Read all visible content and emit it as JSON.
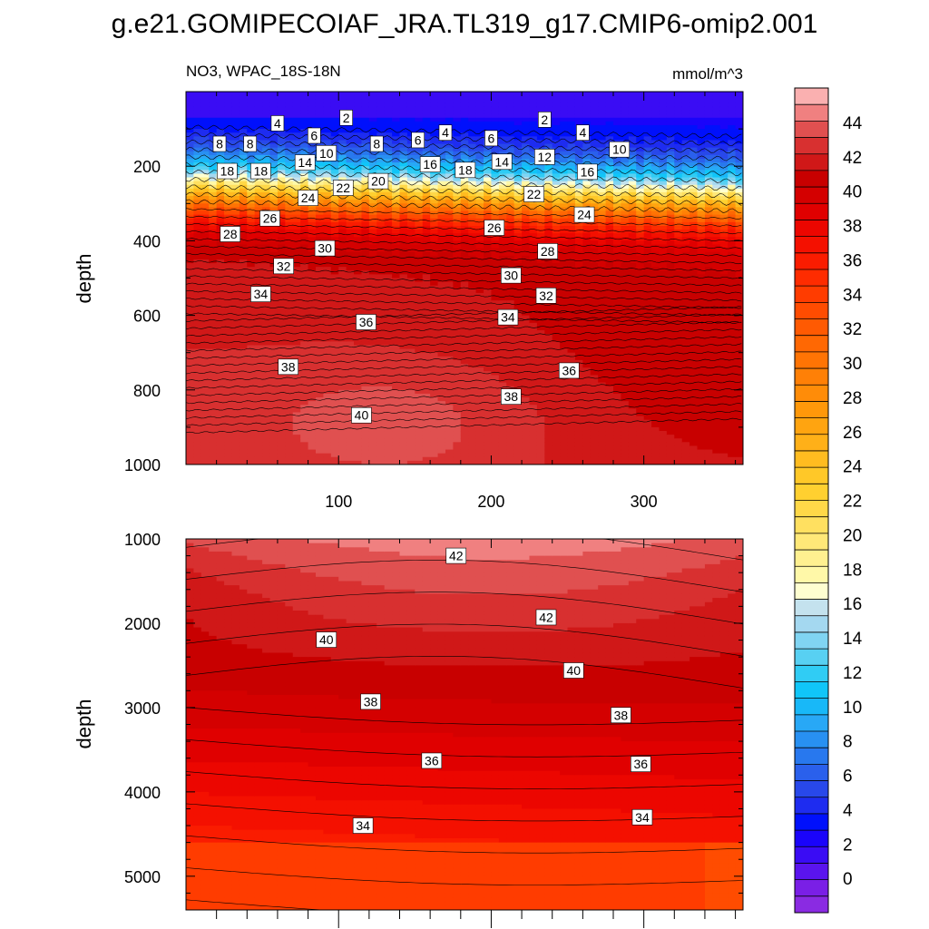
{
  "figure": {
    "title": "g.e21.GOMIPECOIAF_JRA.TL319_g17.CMIP6-omip2.001"
  },
  "chart_data": [
    {
      "type": "heatmap",
      "panel": "upper",
      "left_title": "NO3, WPAC_18S-18N",
      "right_title": "mmol/m^3",
      "xlabel": "",
      "ylabel": "depth",
      "xlim": [
        0,
        365
      ],
      "ylim": [
        1000,
        0
      ],
      "x_ticks": [
        100,
        200,
        300
      ],
      "y_ticks": [
        200,
        400,
        600,
        800,
        1000
      ],
      "contour_labels": [
        {
          "x": 60,
          "y": 85,
          "value": 4
        },
        {
          "x": 105,
          "y": 70,
          "value": 2
        },
        {
          "x": 235,
          "y": 75,
          "value": 2
        },
        {
          "x": 260,
          "y": 110,
          "value": 4
        },
        {
          "x": 170,
          "y": 110,
          "value": 4
        },
        {
          "x": 22,
          "y": 140,
          "value": 8
        },
        {
          "x": 42,
          "y": 140,
          "value": 8
        },
        {
          "x": 84,
          "y": 118,
          "value": 6
        },
        {
          "x": 152,
          "y": 130,
          "value": 6
        },
        {
          "x": 200,
          "y": 125,
          "value": 6
        },
        {
          "x": 125,
          "y": 140,
          "value": 8
        },
        {
          "x": 92,
          "y": 165,
          "value": 10
        },
        {
          "x": 284,
          "y": 155,
          "value": 10
        },
        {
          "x": 235,
          "y": 175,
          "value": 12
        },
        {
          "x": 78,
          "y": 190,
          "value": 14
        },
        {
          "x": 207,
          "y": 188,
          "value": 14
        },
        {
          "x": 160,
          "y": 195,
          "value": 16
        },
        {
          "x": 263,
          "y": 215,
          "value": 16
        },
        {
          "x": 27,
          "y": 213,
          "value": 18
        },
        {
          "x": 49,
          "y": 213,
          "value": 18
        },
        {
          "x": 183,
          "y": 210,
          "value": 18
        },
        {
          "x": 126,
          "y": 240,
          "value": 20
        },
        {
          "x": 103,
          "y": 258,
          "value": 22
        },
        {
          "x": 228,
          "y": 275,
          "value": 22
        },
        {
          "x": 80,
          "y": 285,
          "value": 24
        },
        {
          "x": 261,
          "y": 330,
          "value": 24
        },
        {
          "x": 55,
          "y": 340,
          "value": 26
        },
        {
          "x": 202,
          "y": 365,
          "value": 26
        },
        {
          "x": 29,
          "y": 382,
          "value": 28
        },
        {
          "x": 237,
          "y": 428,
          "value": 28
        },
        {
          "x": 91,
          "y": 420,
          "value": 30
        },
        {
          "x": 213,
          "y": 493,
          "value": 30
        },
        {
          "x": 64,
          "y": 468,
          "value": 32
        },
        {
          "x": 236,
          "y": 547,
          "value": 32
        },
        {
          "x": 49,
          "y": 543,
          "value": 34
        },
        {
          "x": 211,
          "y": 605,
          "value": 34
        },
        {
          "x": 118,
          "y": 618,
          "value": 36
        },
        {
          "x": 251,
          "y": 748,
          "value": 36
        },
        {
          "x": 67,
          "y": 738,
          "value": 38
        },
        {
          "x": 213,
          "y": 818,
          "value": 38
        },
        {
          "x": 115,
          "y": 868,
          "value": 40
        }
      ]
    },
    {
      "type": "heatmap",
      "panel": "lower",
      "xlabel": "",
      "ylabel": "depth",
      "xlim": [
        0,
        365
      ],
      "ylim": [
        5400,
        1000
      ],
      "y_ticks": [
        1000,
        2000,
        3000,
        4000,
        5000
      ],
      "contour_labels": [
        {
          "x": 177,
          "y": 1200,
          "value": 42
        },
        {
          "x": 236,
          "y": 1930,
          "value": 42
        },
        {
          "x": 92,
          "y": 2195,
          "value": 40
        },
        {
          "x": 254,
          "y": 2560,
          "value": 40
        },
        {
          "x": 121,
          "y": 2930,
          "value": 38
        },
        {
          "x": 285,
          "y": 3090,
          "value": 38
        },
        {
          "x": 161,
          "y": 3630,
          "value": 36
        },
        {
          "x": 298,
          "y": 3670,
          "value": 36
        },
        {
          "x": 116,
          "y": 4400,
          "value": 34
        },
        {
          "x": 299,
          "y": 4300,
          "value": 34
        }
      ]
    }
  ],
  "colorbar": {
    "levels": [
      -2,
      0,
      2,
      4,
      6,
      8,
      10,
      12,
      14,
      16,
      18,
      20,
      22,
      24,
      26,
      28,
      30,
      32,
      34,
      36,
      38,
      40,
      42,
      44,
      46
    ],
    "tick_labels": [
      "0",
      "2",
      "4",
      "6",
      "8",
      "10",
      "12",
      "14",
      "16",
      "18",
      "20",
      "22",
      "24",
      "26",
      "28",
      "30",
      "32",
      "34",
      "36",
      "38",
      "40",
      "42",
      "44"
    ],
    "colors": [
      "#8a2be2",
      "#7a1fe6",
      "#5a14ee",
      "#3a0cf4",
      "#1a04fa",
      "#0010fc",
      "#1e2cf0",
      "#2848ea",
      "#2a60ec",
      "#2878ee",
      "#2890f2",
      "#28a8f6",
      "#18b8f8",
      "#10c6f8",
      "#30ccf4",
      "#58d0f2",
      "#80d4f2",
      "#a4d8f0",
      "#c4e2ee",
      "#fefed0",
      "#fff8a8",
      "#fff090",
      "#ffe878",
      "#ffe060",
      "#ffd848",
      "#ffd030",
      "#ffc828",
      "#ffbc20",
      "#ffb018",
      "#ffa410",
      "#ff980a",
      "#ff8c08",
      "#ff8006",
      "#ff7404",
      "#ff6803",
      "#ff5a02",
      "#ff4c01",
      "#ff3c00",
      "#fe2c00",
      "#fa1c00",
      "#f41000",
      "#ec0600",
      "#e00000",
      "#d40000",
      "#c80000",
      "#d01818",
      "#d83030",
      "#e05050",
      "#f08080",
      "#fab0b0"
    ]
  }
}
